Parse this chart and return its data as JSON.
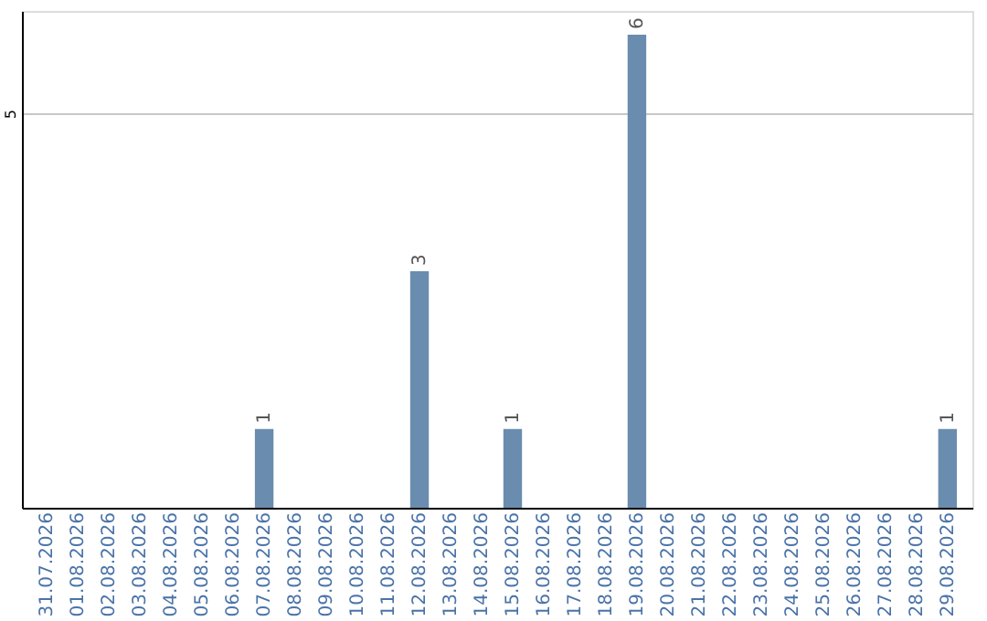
{
  "chart_data": {
    "type": "bar",
    "categories": [
      "31.07.2026",
      "01.08.2026",
      "02.08.2026",
      "03.08.2026",
      "04.08.2026",
      "05.08.2026",
      "06.08.2026",
      "07.08.2026",
      "08.08.2026",
      "09.08.2026",
      "10.08.2026",
      "11.08.2026",
      "12.08.2026",
      "13.08.2026",
      "14.08.2026",
      "15.08.2026",
      "16.08.2026",
      "17.08.2026",
      "18.08.2026",
      "19.08.2026",
      "20.08.2026",
      "21.08.2026",
      "22.08.2026",
      "23.08.2026",
      "24.08.2026",
      "25.08.2026",
      "26.08.2026",
      "27.08.2026",
      "28.08.2026",
      "29.08.2026"
    ],
    "values": [
      0,
      0,
      0,
      0,
      0,
      0,
      0,
      1,
      0,
      0,
      0,
      0,
      3,
      0,
      0,
      1,
      0,
      0,
      0,
      6,
      0,
      0,
      0,
      0,
      0,
      0,
      0,
      0,
      0,
      1
    ],
    "value_labels": [
      null,
      null,
      null,
      null,
      null,
      null,
      null,
      "1",
      null,
      null,
      null,
      null,
      "3",
      null,
      null,
      "1",
      null,
      null,
      null,
      "6",
      null,
      null,
      null,
      null,
      null,
      null,
      null,
      null,
      null,
      "1"
    ],
    "color": "#6a8caf",
    "ylim": [
      0,
      6.3
    ],
    "yticks": [
      5
    ],
    "grid": "y"
  }
}
